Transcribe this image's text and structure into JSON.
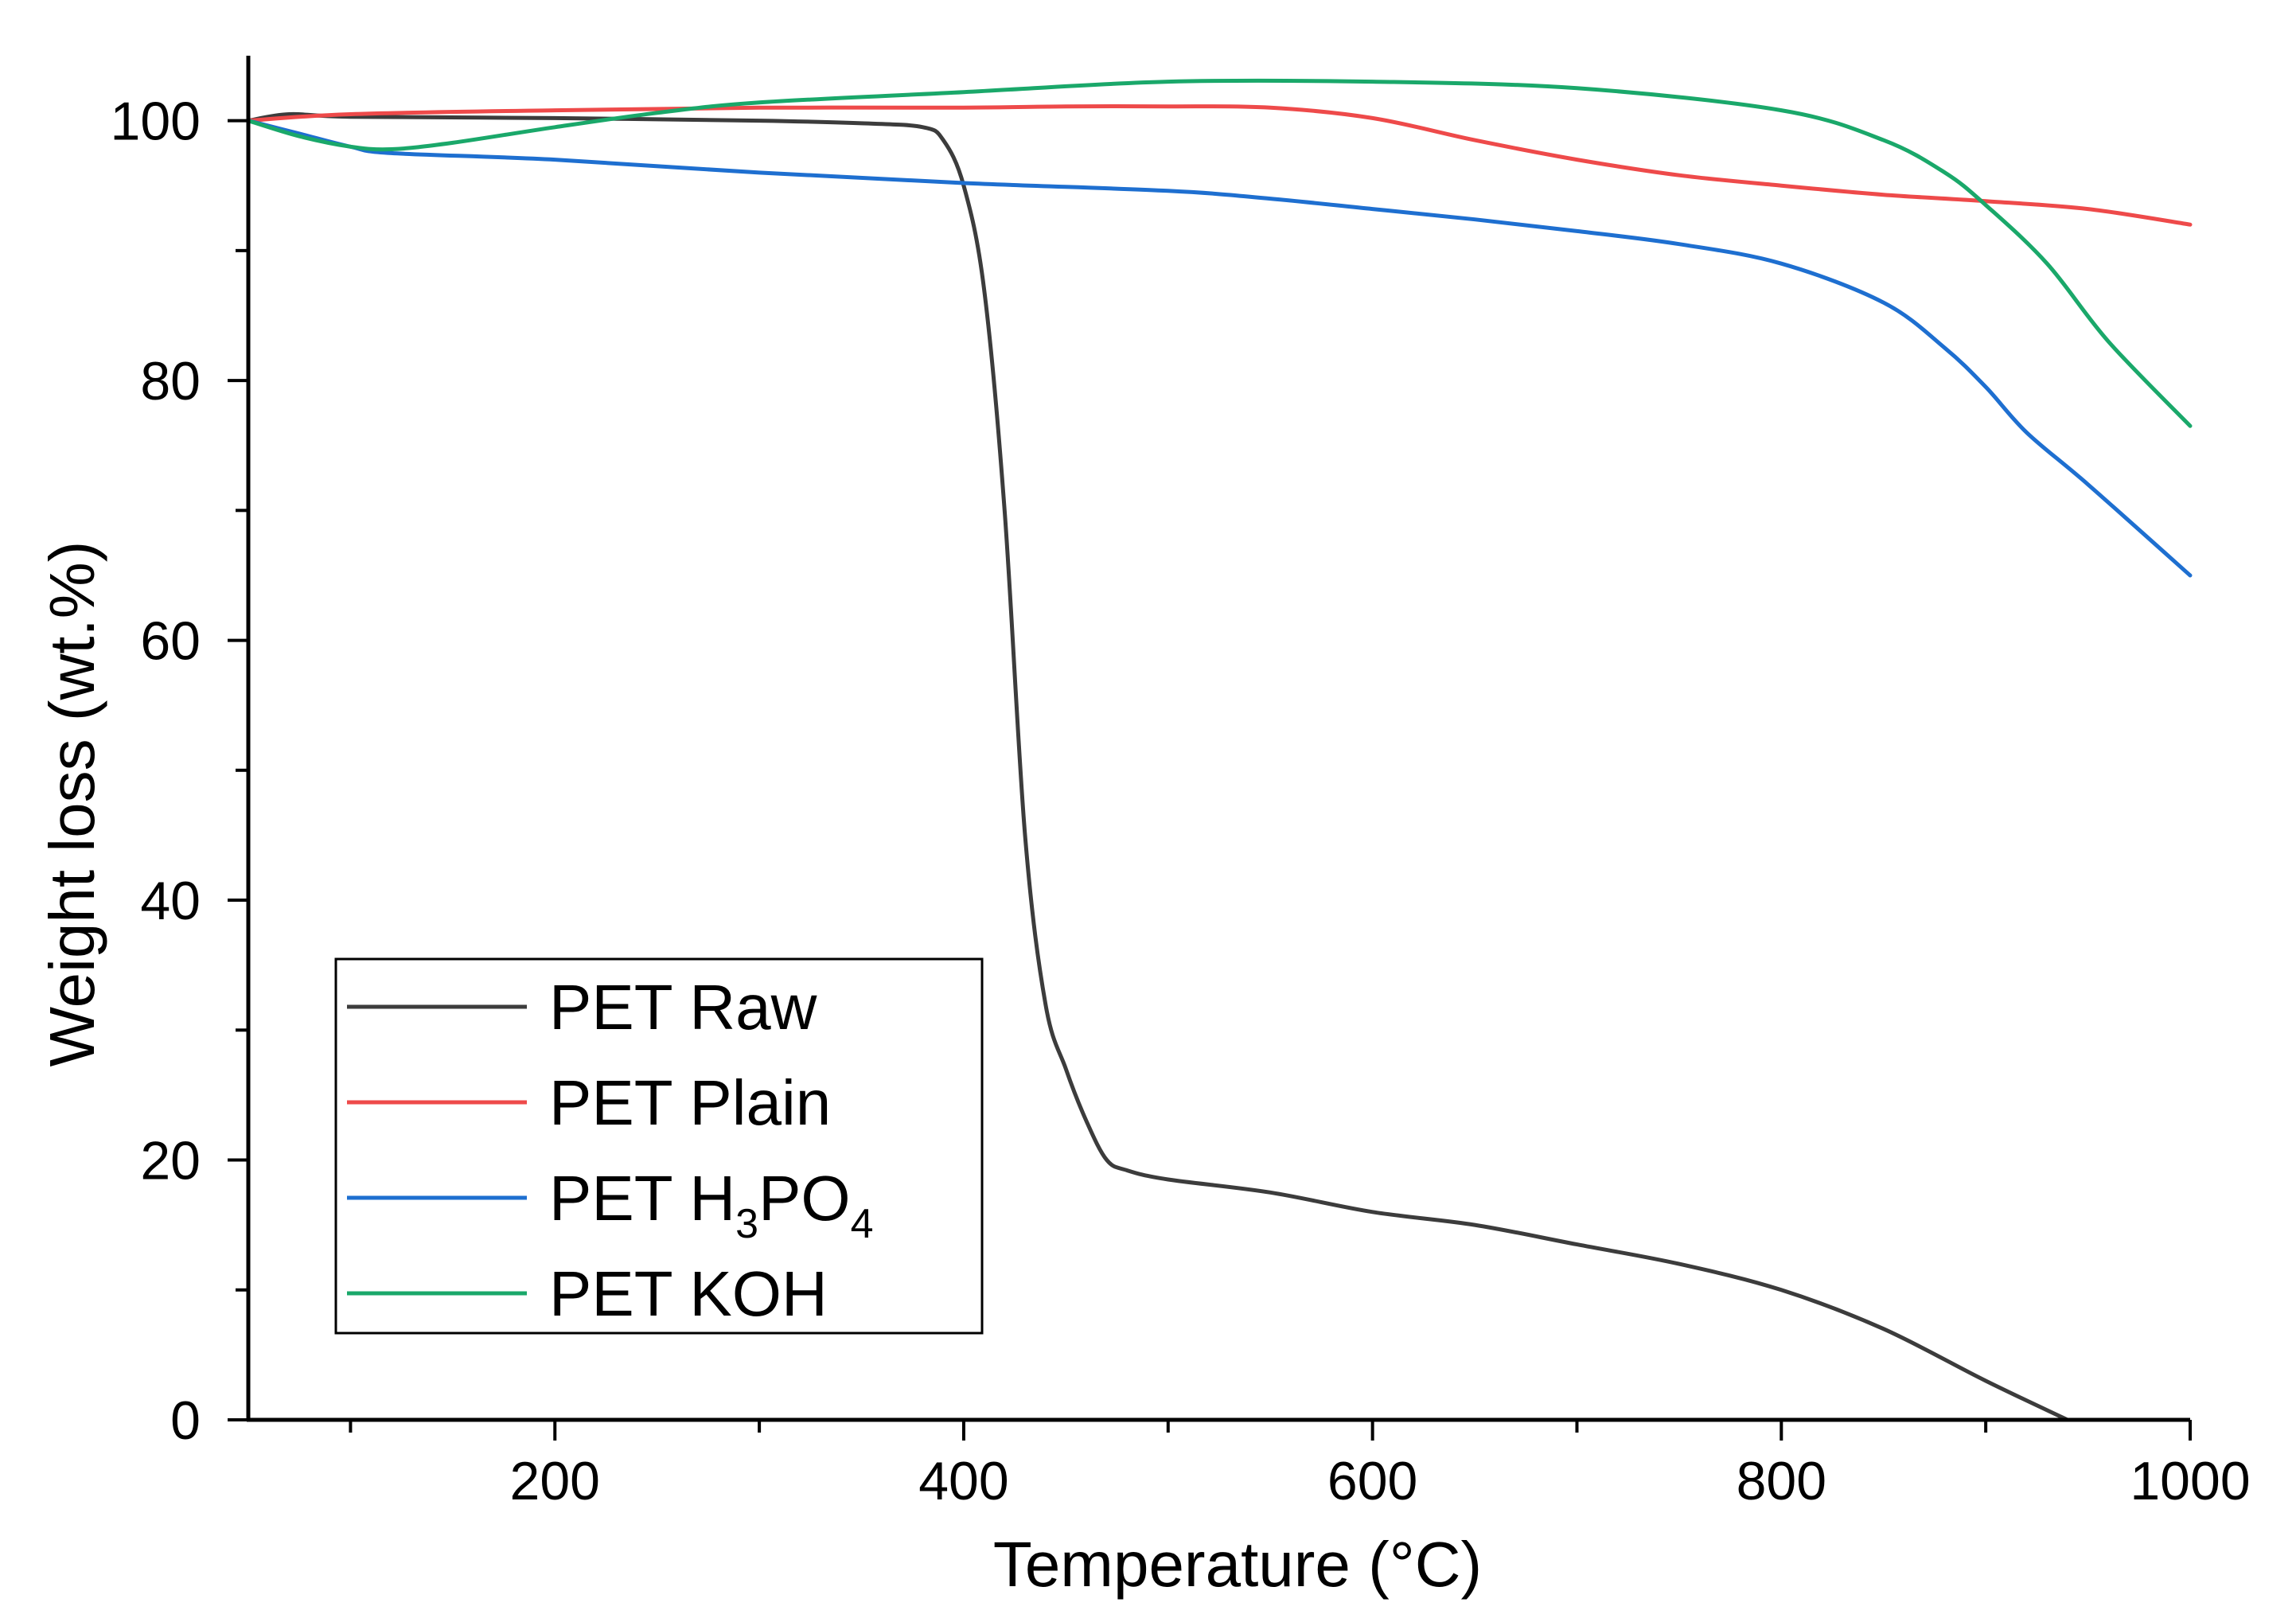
{
  "chart_data": {
    "type": "line",
    "title": "",
    "xlabel": "Temperature (°C)",
    "ylabel": "Weight loss (wt.%)",
    "xlim": [
      50,
      1000
    ],
    "ylim": [
      0,
      105
    ],
    "xticks": [
      200,
      400,
      600,
      800,
      1000
    ],
    "yticks": [
      0,
      20,
      40,
      60,
      80,
      100
    ],
    "xtick_labels": [
      "200",
      "400",
      "600",
      "800",
      "1000"
    ],
    "ytick_labels": [
      "0",
      "20",
      "40",
      "60",
      "80",
      "100"
    ],
    "grid": false,
    "legend_position": "bottom-left",
    "series": [
      {
        "name": "PET Raw",
        "legend": {
          "prefix": "PET Raw",
          "sub1": "",
          "mid": "",
          "sub2": ""
        },
        "color": "#3c3c3c",
        "x": [
          50,
          70,
          100,
          200,
          300,
          350,
          380,
          390,
          400,
          410,
          420,
          430,
          440,
          450,
          460,
          470,
          480,
          500,
          550,
          600,
          650,
          700,
          750,
          800,
          850,
          900,
          940
        ],
        "y": [
          100,
          100.5,
          100.3,
          100.2,
          100,
          99.8,
          99.5,
          98.5,
          95,
          87,
          70,
          45,
          32,
          27,
          23,
          20,
          19.2,
          18.5,
          17.5,
          16,
          15,
          13.5,
          12,
          10,
          7,
          3,
          0
        ]
      },
      {
        "name": "PET Plain",
        "legend": {
          "prefix": "PET Plain",
          "sub1": "",
          "mid": "",
          "sub2": ""
        },
        "color": "#ee4a4a",
        "x": [
          50,
          100,
          200,
          300,
          400,
          450,
          500,
          550,
          600,
          650,
          700,
          750,
          800,
          850,
          900,
          950,
          1000
        ],
        "y": [
          100,
          100.5,
          100.8,
          101,
          101,
          101.1,
          101.1,
          101,
          100.2,
          98.5,
          97,
          95.8,
          95,
          94.3,
          93.8,
          93.2,
          92
        ]
      },
      {
        "name": "PET H3PO4",
        "legend": {
          "prefix": "PET H",
          "sub1": "3",
          "mid": "PO",
          "sub2": "4"
        },
        "color": "#1e6fd0",
        "x": [
          50,
          75,
          100,
          120,
          200,
          300,
          400,
          500,
          550,
          600,
          650,
          700,
          750,
          800,
          850,
          880,
          900,
          920,
          950,
          1000
        ],
        "y": [
          100,
          99,
          98,
          97.5,
          97,
          96,
          95.2,
          94.6,
          94,
          93.2,
          92.4,
          91.5,
          90.5,
          89,
          86,
          82.5,
          79.5,
          76,
          72,
          65
        ]
      },
      {
        "name": "PET KOH",
        "legend": {
          "prefix": "PET KOH",
          "sub1": "",
          "mid": "",
          "sub2": ""
        },
        "color": "#1aa86a",
        "x": [
          50,
          75,
          100,
          120,
          150,
          200,
          250,
          300,
          400,
          500,
          600,
          700,
          800,
          850,
          880,
          900,
          930,
          960,
          1000
        ],
        "y": [
          100,
          98.8,
          98,
          97.8,
          98.3,
          99.5,
          100.6,
          101.4,
          102.2,
          103,
          103,
          102.5,
          100.8,
          98.5,
          96,
          93.5,
          89,
          83,
          76.5
        ]
      }
    ]
  }
}
